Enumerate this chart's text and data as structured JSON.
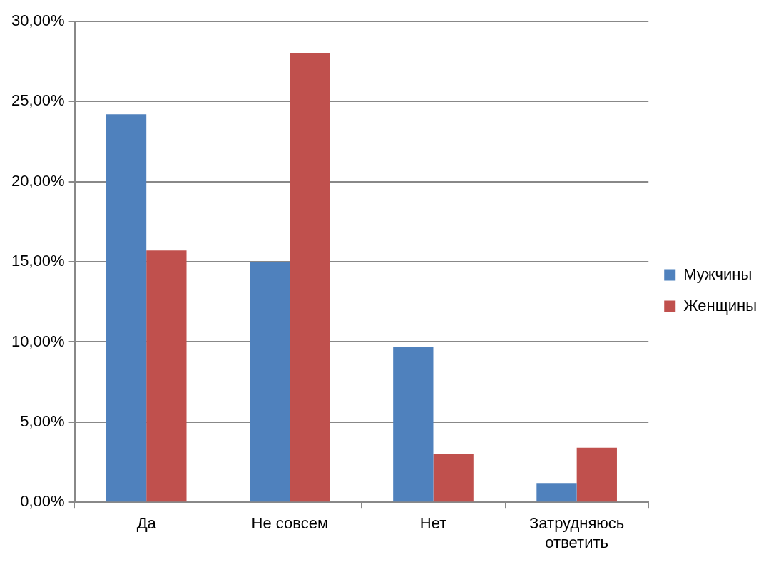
{
  "chart_data": {
    "type": "bar",
    "categories": [
      "Да",
      "Не совсем",
      "Нет",
      "Затрудняюсь ответить"
    ],
    "series": [
      {
        "name": "Мужчины",
        "color": "#4f81bd",
        "values": [
          24.2,
          15.0,
          9.7,
          1.2
        ]
      },
      {
        "name": "Женщины",
        "color": "#c0504d",
        "values": [
          15.7,
          28.0,
          3.0,
          3.4
        ]
      }
    ],
    "ylim": [
      0,
      30
    ],
    "yticks": [
      {
        "value": 0,
        "label": "0,00%"
      },
      {
        "value": 5,
        "label": "5,00%"
      },
      {
        "value": 10,
        "label": "10,00%"
      },
      {
        "value": 15,
        "label": "15,00%"
      },
      {
        "value": 20,
        "label": "20,00%"
      },
      {
        "value": 25,
        "label": "25,00%"
      },
      {
        "value": 30,
        "label": "30,00%"
      }
    ],
    "grid": "y",
    "legend": "right"
  }
}
